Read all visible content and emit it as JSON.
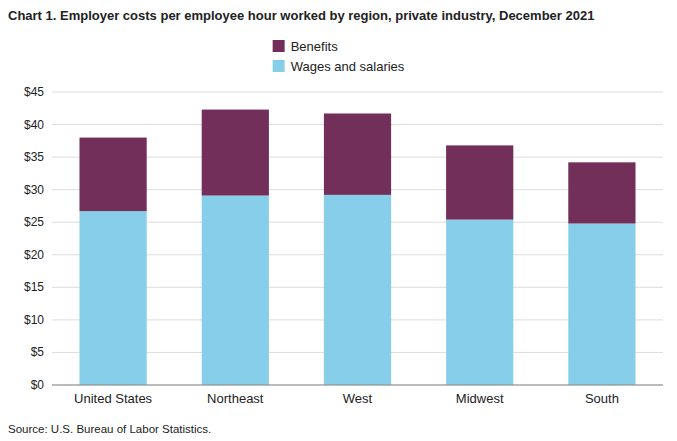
{
  "chart_data": {
    "type": "bar",
    "title": "Chart 1. Employer costs per employee hour worked by region, private industry, December 2021",
    "categories": [
      "United States",
      "Northeast",
      "West",
      "Midwest",
      "South"
    ],
    "series": [
      {
        "name": "Wages and salaries",
        "color": "#87CEEB",
        "values": [
          26.7,
          29.1,
          29.2,
          25.4,
          24.8
        ]
      },
      {
        "name": "Benefits",
        "color": "#722F5A",
        "values": [
          11.3,
          13.2,
          12.5,
          11.4,
          9.4
        ]
      }
    ],
    "stacked": true,
    "ylim": [
      0,
      45
    ],
    "yticks": [
      {
        "value": 0,
        "label": "$0"
      },
      {
        "value": 5,
        "label": "$5"
      },
      {
        "value": 10,
        "label": "$10"
      },
      {
        "value": 15,
        "label": "$15"
      },
      {
        "value": 20,
        "label": "$20"
      },
      {
        "value": 25,
        "label": "$25"
      },
      {
        "value": 30,
        "label": "$30"
      },
      {
        "value": 35,
        "label": "$35"
      },
      {
        "value": 40,
        "label": "$40"
      },
      {
        "value": 45,
        "label": "$45"
      }
    ],
    "grid": true,
    "legend": "top",
    "annotations": [
      "Source: U.S. Bureau of Labor Statistics."
    ]
  }
}
